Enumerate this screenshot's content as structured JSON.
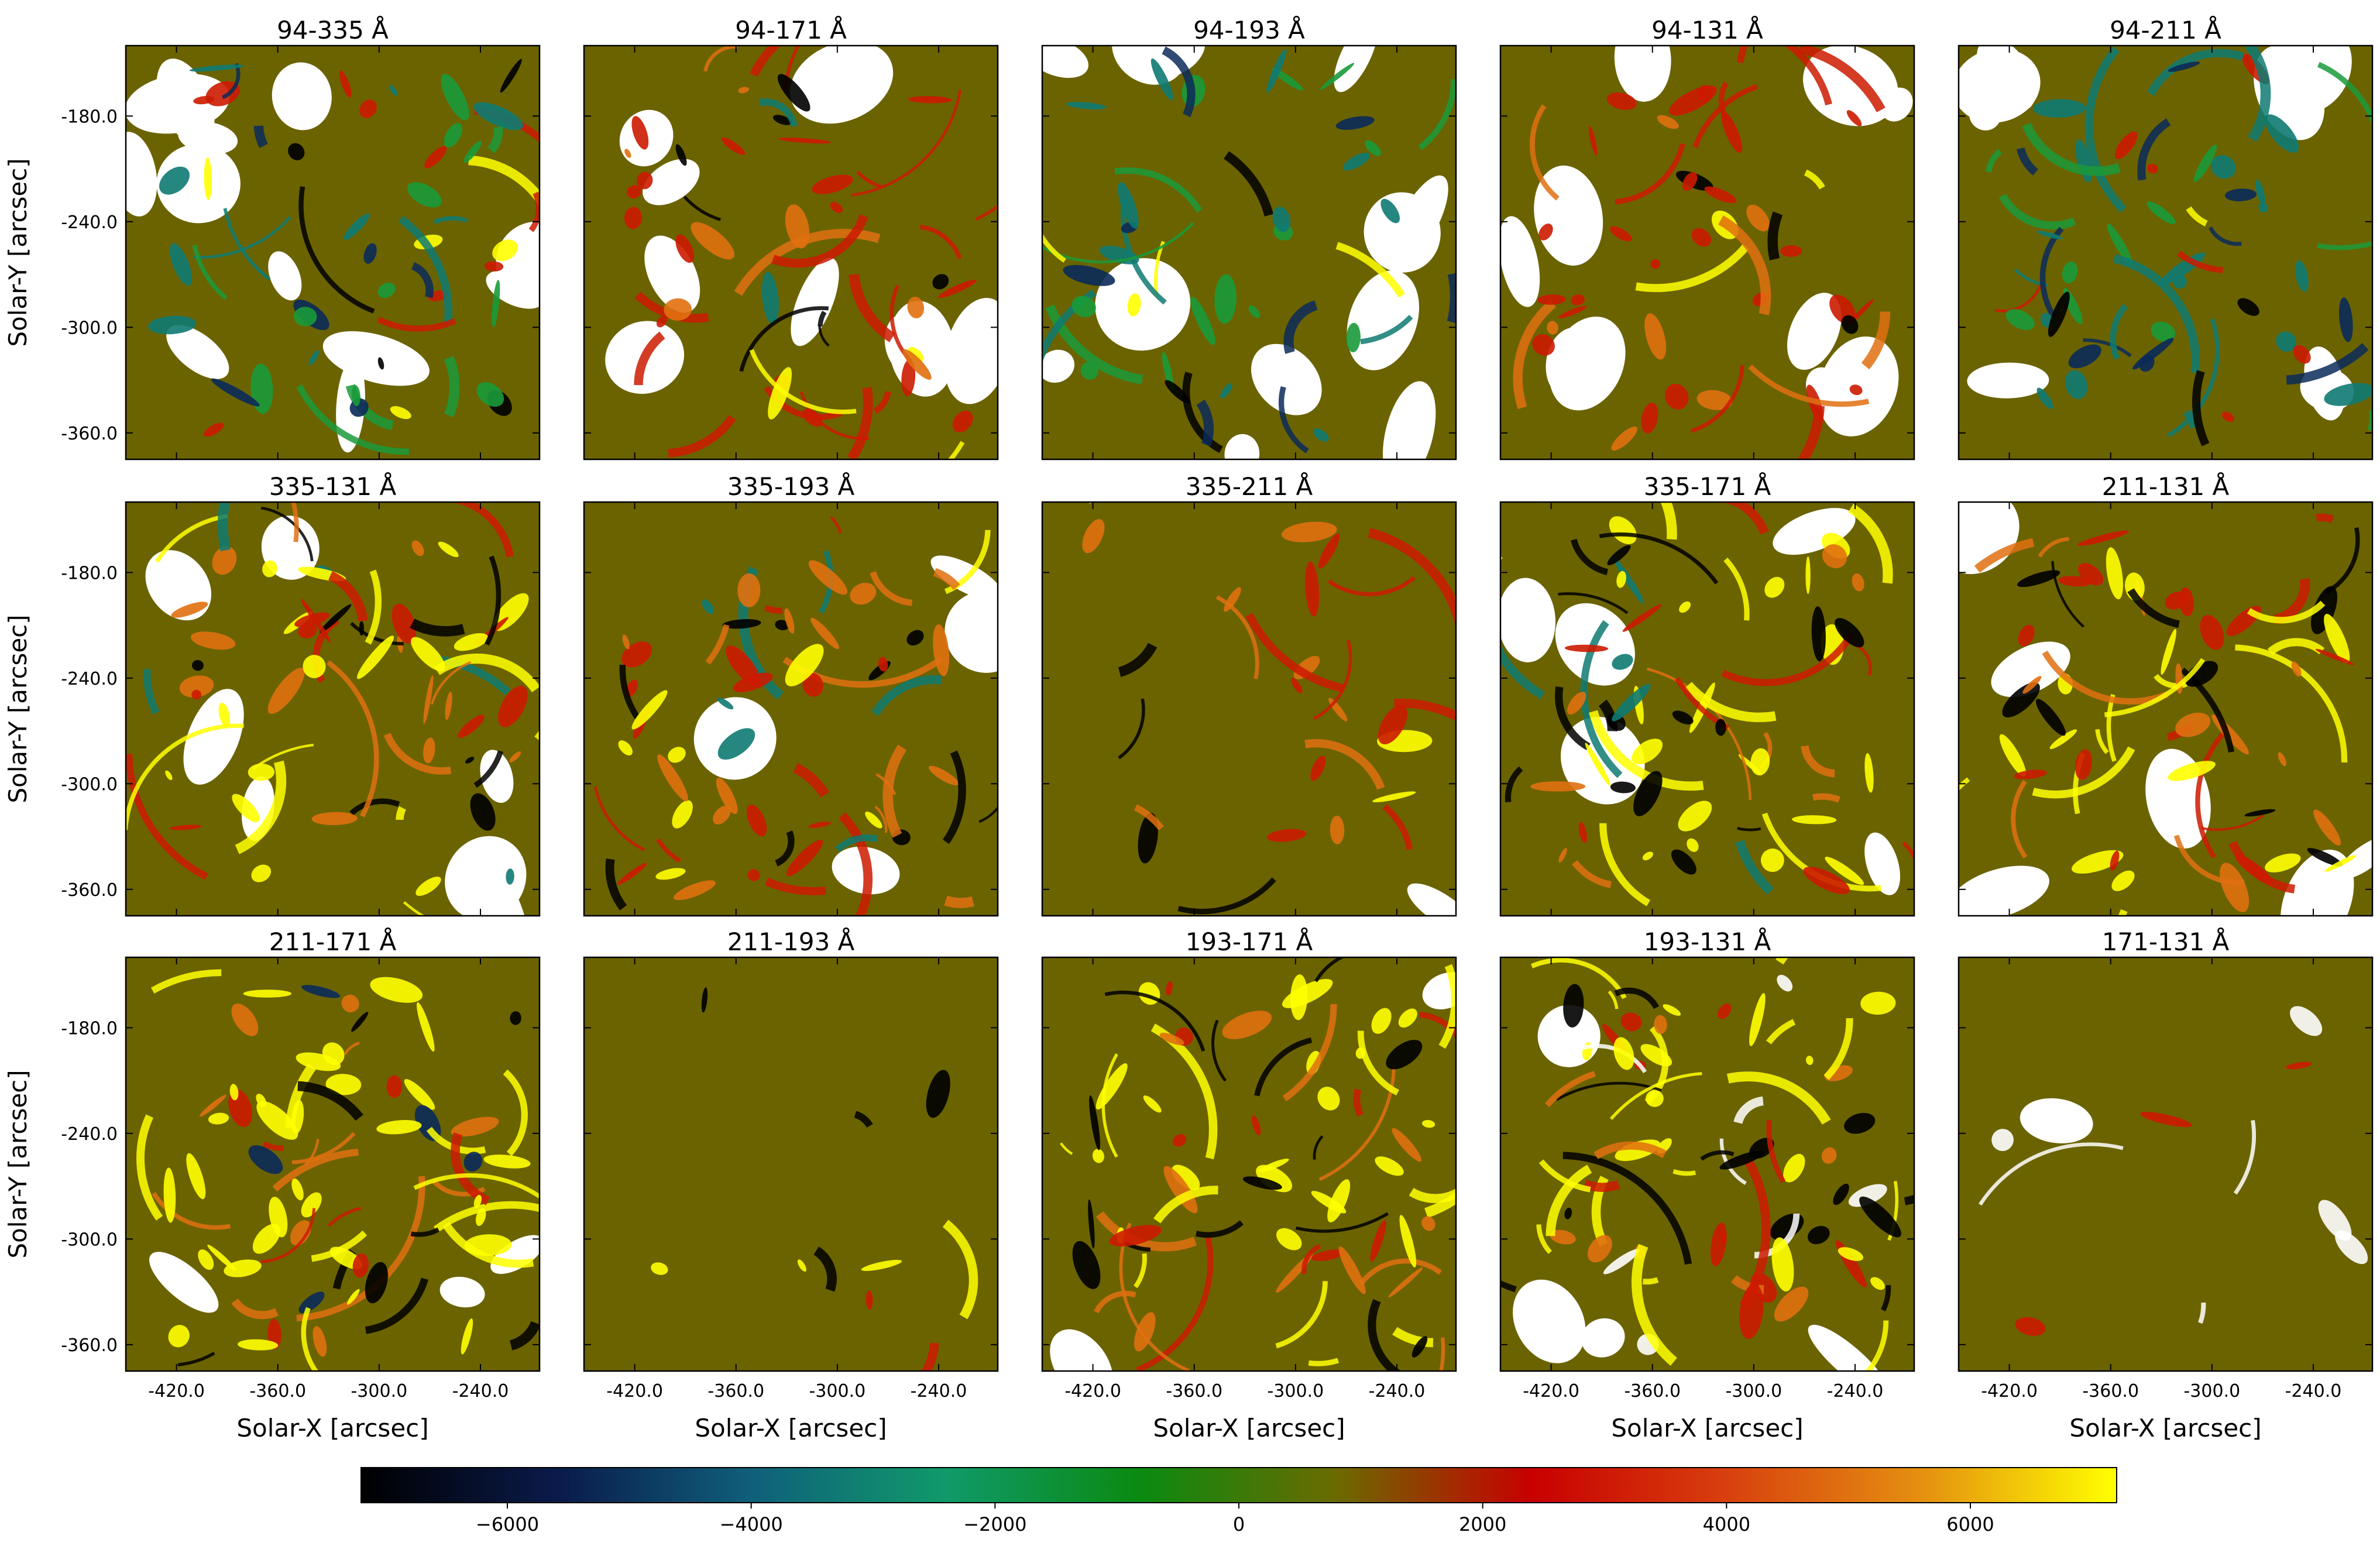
{
  "chart_data": {
    "type": "heatmap",
    "grid": {
      "rows": 3,
      "cols": 5
    },
    "xlabel": "Solar-X [arcsec]",
    "ylabel": "Solar-Y [arcsec]",
    "x_ticks": [
      "-420.0",
      "-360.0",
      "-300.0",
      "-240.0"
    ],
    "y_ticks": [
      "-180.0",
      "-240.0",
      "-300.0",
      "-360.0"
    ],
    "xlim": [
      -450,
      -205
    ],
    "ylim": [
      -375,
      -140
    ],
    "panels": [
      {
        "title": "94-335 Å",
        "style": "A"
      },
      {
        "title": "94-171 Å",
        "style": "B"
      },
      {
        "title": "94-193 Å",
        "style": "C"
      },
      {
        "title": "94-131 Å",
        "style": "D"
      },
      {
        "title": "94-211 Å",
        "style": "E"
      },
      {
        "title": "335-131 Å",
        "style": "F"
      },
      {
        "title": "335-193 Å",
        "style": "G"
      },
      {
        "title": "335-211 Å",
        "style": "H"
      },
      {
        "title": "335-171 Å",
        "style": "I"
      },
      {
        "title": "211-131 Å",
        "style": "J"
      },
      {
        "title": "211-171 Å",
        "style": "K"
      },
      {
        "title": "211-193 Å",
        "style": "L"
      },
      {
        "title": "193-171 Å",
        "style": "M"
      },
      {
        "title": "193-131 Å",
        "style": "N"
      },
      {
        "title": "171-131 Å",
        "style": "O"
      }
    ],
    "colorbar": {
      "range": [
        -7200,
        7200
      ],
      "ticks": [
        "−6000",
        "−4000",
        "−2000",
        "0",
        "2000",
        "4000",
        "6000"
      ],
      "tick_values": [
        -6000,
        -4000,
        -2000,
        0,
        2000,
        4000,
        6000
      ],
      "colors": [
        "#000000",
        "#0a1a4a",
        "#0f5f7a",
        "#109a6a",
        "#0a8a10",
        "#6b6a00",
        "#c80000",
        "#d8400e",
        "#e49010",
        "#ffff00"
      ]
    },
    "background_color": "#6b6300",
    "white_color": "#ffffff"
  }
}
